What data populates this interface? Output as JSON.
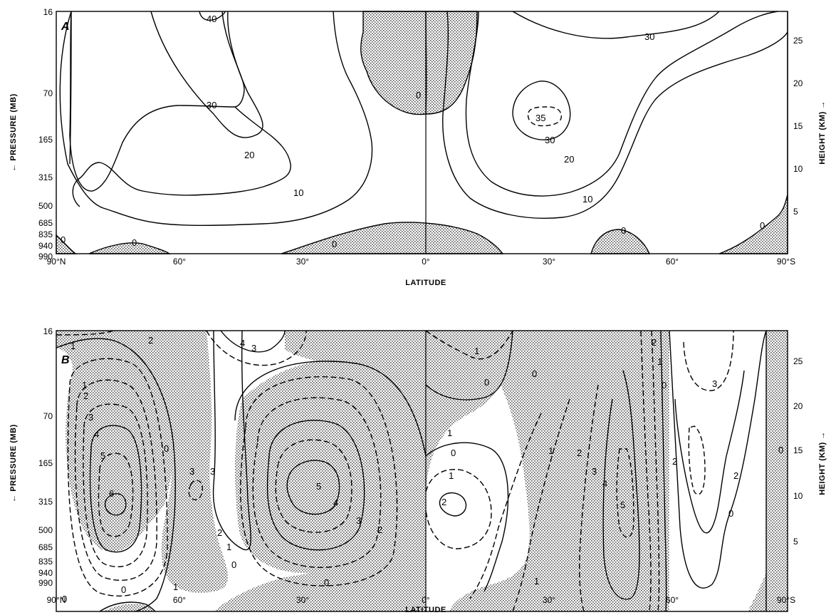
{
  "chart_data": [
    {
      "type": "contour",
      "panel_label": "A",
      "xlabel": "LATITUDE",
      "ylabel_left": "PRESSURE (MB)",
      "ylabel_right": "HEIGHT (KM)",
      "x_ticks": [
        "90°N",
        "60°",
        "30°",
        "0°",
        "30°",
        "60°",
        "90°S"
      ],
      "x_values": [
        90,
        60,
        30,
        0,
        -30,
        -60,
        -90
      ],
      "pressure_ticks": [
        "16",
        "70",
        "165",
        "315",
        "500",
        "685",
        "835",
        "940",
        "990"
      ],
      "pressure_values": [
        16,
        70,
        165,
        315,
        500,
        685,
        835,
        940,
        990
      ],
      "height_ticks": [
        "25",
        "20",
        "15",
        "10",
        "5"
      ],
      "height_values": [
        25,
        20,
        15,
        10,
        5
      ],
      "contour_labels": [
        "40",
        "30",
        "20",
        "10",
        "0",
        "0",
        "0",
        "0",
        "0",
        "30",
        "35",
        "30",
        "20",
        "10",
        "0",
        "0"
      ],
      "shading": "stippled regions indicate values below zero"
    },
    {
      "type": "contour",
      "panel_label": "B",
      "xlabel": "LATITUDE",
      "ylabel_left": "PRESSURE (MB)",
      "ylabel_right": "HEIGHT (KM)",
      "x_ticks": [
        "90°N",
        "60°",
        "30°",
        "0°",
        "30°",
        "60°",
        "90°S"
      ],
      "x_values": [
        90,
        60,
        30,
        0,
        -30,
        -60,
        -90
      ],
      "pressure_ticks": [
        "16",
        "70",
        "165",
        "315",
        "500",
        "685",
        "835",
        "940",
        "990"
      ],
      "pressure_values": [
        16,
        70,
        165,
        315,
        500,
        685,
        835,
        940,
        990
      ],
      "height_ticks": [
        "25",
        "20",
        "15",
        "10",
        "5"
      ],
      "height_values": [
        25,
        20,
        15,
        10,
        5
      ],
      "contour_labels": [
        "1",
        "2",
        "1",
        "2",
        "3",
        "4",
        "5",
        "6",
        "0",
        "3",
        "4",
        "3",
        "3",
        "2",
        "1",
        "0",
        "5",
        "4",
        "3",
        "2",
        "1",
        "0",
        "1",
        "0",
        "2",
        "0",
        "1",
        "1",
        "1",
        "2",
        "3",
        "4",
        "5",
        "2",
        "1",
        "0",
        "2",
        "3",
        "2",
        "0",
        "0",
        "0",
        "1",
        "0",
        "0"
      ],
      "shading": "stippled regions indicate negative values (dashed contours)"
    }
  ],
  "figure": {
    "colors": {
      "ink": "#000000",
      "stipple": "#bdbdbd",
      "background": "#ffffff"
    }
  }
}
